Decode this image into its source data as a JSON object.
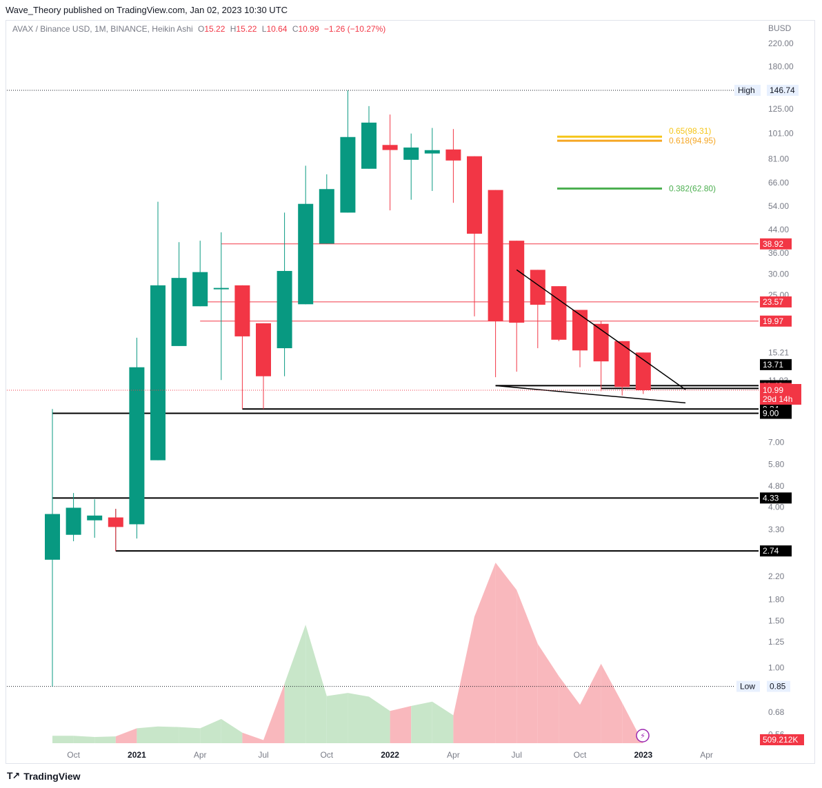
{
  "header": {
    "publisher_line": "Wave_Theory published on TradingView.com, Jan 02, 2023 10:30 UTC"
  },
  "legend": {
    "symbol": "AVAX / Binance USD, 1M, BINANCE, Heikin Ashi",
    "o_label": "O",
    "o_value": "15.22",
    "h_label": "H",
    "h_value": "15.22",
    "l_label": "L",
    "l_value": "10.64",
    "c_label": "C",
    "c_value": "10.99",
    "change": "−1.26 (−10.27%)"
  },
  "footer": {
    "brand": "TradingView"
  },
  "colors": {
    "up": "#089981",
    "down": "#f23645",
    "volume_up": "#c8e6c9",
    "volume_down": "#f9b8bd",
    "fib_gold": "#f5c518",
    "fib_orange": "#f5a623",
    "fib_green": "#4caf50",
    "hline_red": "#f23645",
    "axis_text": "#787b86",
    "label_black": "#000000"
  },
  "chart_data": {
    "type": "candlestick",
    "chart_style": "Heikin Ashi",
    "y_scale": "log",
    "currency": "BUSD",
    "y_ticks": [
      220.0,
      180.0,
      125.0,
      101.0,
      81.0,
      66.0,
      54.0,
      44.0,
      36.0,
      30.0,
      25.0,
      15.21,
      11.93,
      9.26,
      7.0,
      5.8,
      4.8,
      4.0,
      3.3,
      2.2,
      1.8,
      1.5,
      1.25,
      1.0,
      0.68,
      0.56
    ],
    "y_tick_labels": [
      "220.00",
      "180.00",
      "125.00",
      "101.00",
      "81.00",
      "66.00",
      "54.00",
      "44.00",
      "36.00",
      "30.00",
      "25.00",
      "15.21",
      "11.93",
      "9.26",
      "7.00",
      "5.80",
      "4.80",
      "4.00",
      "3.30",
      "2.20",
      "1.80",
      "1.50",
      "1.25",
      "1.00",
      "0.68",
      "0.56"
    ],
    "x_labels": [
      "Oct",
      "2021",
      "Apr",
      "Jul",
      "Oct",
      "2022",
      "Apr",
      "Jul",
      "Oct",
      "2023",
      "Apr"
    ],
    "x_label_months": [
      "2020-10",
      "2021-01",
      "2021-04",
      "2021-07",
      "2021-10",
      "2022-01",
      "2022-04",
      "2022-07",
      "2022-10",
      "2023-01",
      "2023-04"
    ],
    "bold_x_labels": [
      "2021",
      "2022",
      "2023"
    ],
    "candles": [
      {
        "date": "2020-09",
        "open": 2.54,
        "high": 3.77,
        "low": 0.85,
        "close": 3.77
      },
      {
        "date": "2020-10",
        "open": 3.15,
        "high": 4.52,
        "low": 2.98,
        "close": 3.98
      },
      {
        "date": "2020-11",
        "open": 3.57,
        "high": 4.28,
        "low": 3.07,
        "close": 3.72
      },
      {
        "date": "2020-12",
        "open": 3.66,
        "high": 3.94,
        "low": 2.74,
        "close": 3.37
      },
      {
        "date": "2021-01",
        "open": 3.45,
        "high": 17.3,
        "low": 3.05,
        "close": 13.4
      },
      {
        "date": "2021-02",
        "open": 6.0,
        "high": 56.0,
        "low": 6.0,
        "close": 27.2
      },
      {
        "date": "2021-03",
        "open": 16.1,
        "high": 39.5,
        "low": 16.1,
        "close": 29.0
      },
      {
        "date": "2021-04",
        "open": 22.7,
        "high": 40.0,
        "low": 22.7,
        "close": 30.5
      },
      {
        "date": "2021-05",
        "open": 26.6,
        "high": 43.0,
        "low": 12.0,
        "close": 26.6
      },
      {
        "date": "2021-06",
        "open": 27.2,
        "high": 27.2,
        "low": 9.34,
        "close": 17.5
      },
      {
        "date": "2021-07",
        "open": 19.6,
        "high": 19.6,
        "low": 9.34,
        "close": 12.4
      },
      {
        "date": "2021-08",
        "open": 15.8,
        "high": 51.0,
        "low": 12.4,
        "close": 30.8
      },
      {
        "date": "2021-09",
        "open": 23.1,
        "high": 76.5,
        "low": 23.1,
        "close": 55.0
      },
      {
        "date": "2021-10",
        "open": 39.0,
        "high": 71.0,
        "low": 39.0,
        "close": 62.5
      },
      {
        "date": "2021-11",
        "open": 51.0,
        "high": 146.74,
        "low": 51.0,
        "close": 98.0
      },
      {
        "date": "2021-12",
        "open": 74.5,
        "high": 128.0,
        "low": 74.5,
        "close": 111.0
      },
      {
        "date": "2022-01",
        "open": 91.5,
        "high": 119.0,
        "low": 52.0,
        "close": 87.6
      },
      {
        "date": "2022-02",
        "open": 80.5,
        "high": 101.0,
        "low": 57.0,
        "close": 89.5
      },
      {
        "date": "2022-03",
        "open": 85.0,
        "high": 106.0,
        "low": 61.5,
        "close": 87.5
      },
      {
        "date": "2022-04",
        "open": 88.0,
        "high": 105.0,
        "low": 55.5,
        "close": 80.0
      },
      {
        "date": "2022-05",
        "open": 83.0,
        "high": 83.0,
        "low": 20.8,
        "close": 42.5
      },
      {
        "date": "2022-06",
        "open": 62.0,
        "high": 62.0,
        "low": 12.3,
        "close": 20.0
      },
      {
        "date": "2022-07",
        "open": 40.0,
        "high": 40.0,
        "low": 12.9,
        "close": 19.7
      },
      {
        "date": "2022-08",
        "open": 31.1,
        "high": 31.1,
        "low": 15.8,
        "close": 23.0
      },
      {
        "date": "2022-09",
        "open": 27.0,
        "high": 27.0,
        "low": 16.8,
        "close": 17.0
      },
      {
        "date": "2022-10",
        "open": 22.0,
        "high": 22.0,
        "low": 13.4,
        "close": 15.5
      },
      {
        "date": "2022-11",
        "open": 19.5,
        "high": 20.0,
        "low": 10.9,
        "close": 14.1
      },
      {
        "date": "2022-12",
        "open": 16.8,
        "high": 16.8,
        "low": 10.5,
        "close": 11.3
      },
      {
        "date": "2023-01",
        "open": 15.22,
        "high": 15.22,
        "low": 10.64,
        "close": 10.99
      }
    ],
    "volume_series": {
      "last_value_label": "509.212K",
      "values": [
        0.12,
        0.12,
        0.1,
        0.11,
        0.24,
        0.27,
        0.26,
        0.24,
        0.39,
        0.17,
        0.05,
        0.96,
        1.91,
        0.76,
        0.81,
        0.75,
        0.52,
        0.6,
        0.67,
        0.45,
        2.04,
        2.91,
        2.47,
        1.6,
        1.08,
        0.62,
        1.28,
        0.65,
        0.0
      ],
      "direction": [
        "up",
        "up",
        "up",
        "down",
        "up",
        "up",
        "up",
        "up",
        "up",
        "down",
        "down",
        "up",
        "up",
        "up",
        "up",
        "up",
        "down",
        "up",
        "up",
        "down",
        "down",
        "down",
        "down",
        "down",
        "down",
        "down",
        "down",
        "down",
        "down"
      ]
    },
    "horizontal_levels": [
      {
        "value": 38.92,
        "label": "38.92",
        "style": "red"
      },
      {
        "value": 23.57,
        "label": "23.57",
        "style": "red"
      },
      {
        "value": 19.97,
        "label": "19.97",
        "style": "red"
      },
      {
        "value": 13.71,
        "label": "13.71",
        "style": "black_label"
      },
      {
        "value": 11.43,
        "label": "11.43",
        "style": "black"
      },
      {
        "value": 11.16,
        "label": "11.16",
        "style": "red_label"
      },
      {
        "value": 9.34,
        "label": "9.34",
        "style": "black"
      },
      {
        "value": 9.0,
        "label": "9.00",
        "style": "black"
      },
      {
        "value": 4.33,
        "label": "4.33",
        "style": "black"
      },
      {
        "value": 2.74,
        "label": "2.74",
        "style": "black"
      }
    ],
    "price_marker": {
      "value": 10.99,
      "label": "10.99",
      "countdown": "29d 14h"
    },
    "high_marker": {
      "label": "High",
      "value": 146.74,
      "value_label": "146.74"
    },
    "low_marker": {
      "label": "Low",
      "value": 0.85,
      "value_label": "0.85"
    },
    "fib_levels": [
      {
        "label": "0.65(98.31)",
        "value": 98.31,
        "color": "gold"
      },
      {
        "label": "0.618(94.95)",
        "value": 94.95,
        "color": "orange"
      },
      {
        "label": "0.382(62.80)",
        "value": 62.8,
        "color": "green"
      }
    ],
    "trendlines": [
      {
        "from": {
          "date": "2022-07",
          "value": 31.1
        },
        "to": {
          "date": "2023-03",
          "value": 11.05
        }
      },
      {
        "from": {
          "date": "2022-06",
          "value": 11.43
        },
        "to": {
          "date": "2023-03",
          "value": 9.85
        }
      }
    ]
  }
}
